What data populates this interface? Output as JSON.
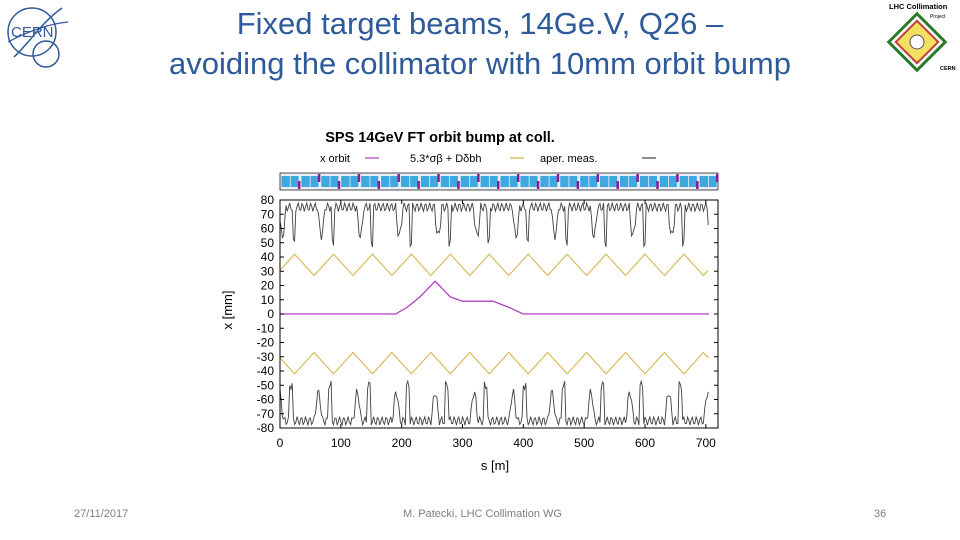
{
  "slide": {
    "title_line1": "Fixed target beams, 14Ge.V, Q26 –",
    "title_line2": "avoiding the collimator with 10mm orbit bump",
    "title_color": "#2e5a9a"
  },
  "logos": {
    "cern_text": "CERN",
    "lhc_text_1": "LHC Collimation",
    "lhc_text_2": "Project",
    "lhc_text_3": "CERN"
  },
  "footer": {
    "date": "27/11/2017",
    "author": "M. Patecki, LHC Collimation WG",
    "page": "36"
  },
  "chart_data": {
    "type": "line",
    "title": "SPS 14GeV FT orbit bump at coll.",
    "xlabel": "s [m]",
    "ylabel": "x [mm]",
    "xlim": [
      0,
      720
    ],
    "ylim": [
      -80,
      80
    ],
    "x_ticks": [
      0,
      100,
      200,
      300,
      400,
      500,
      600,
      700
    ],
    "y_ticks": [
      80,
      70,
      60,
      50,
      40,
      30,
      20,
      10,
      0,
      -10,
      -20,
      -30,
      -40,
      -50,
      -60,
      -70,
      -80
    ],
    "legend": {
      "placement": "top",
      "entries": [
        {
          "label": "x orbit",
          "color": "#b040c0"
        },
        {
          "label": "5.3*σβ + Dδbh",
          "color": "#d4b040"
        },
        {
          "label": "aper. meas.",
          "color": "#404040"
        }
      ]
    },
    "series": [
      {
        "name": "x orbit",
        "color": "#b040c0",
        "x": [
          0,
          190,
          210,
          230,
          255,
          280,
          300,
          320,
          350,
          380,
          400,
          720
        ],
        "y": [
          0,
          0,
          5,
          12,
          23,
          12,
          9,
          9,
          9,
          4,
          0,
          0
        ]
      },
      {
        "name": "5.3*σβ + Dδbh",
        "color": "#d4b040",
        "pattern": "triangle_wave_mirrored",
        "period_m": 64,
        "phase_m": 8,
        "min_mm": 27,
        "max_mm": 42
      },
      {
        "name": "aper. meas.",
        "color": "#404040",
        "pattern": "periodic_aperture_mirrored",
        "base_mm": 75,
        "dip_mm": 40
      }
    ],
    "lattice_strip": {
      "blue": "#3fa8e0",
      "magenta": "#8a1a9a",
      "cells": 22
    },
    "grid": false
  }
}
